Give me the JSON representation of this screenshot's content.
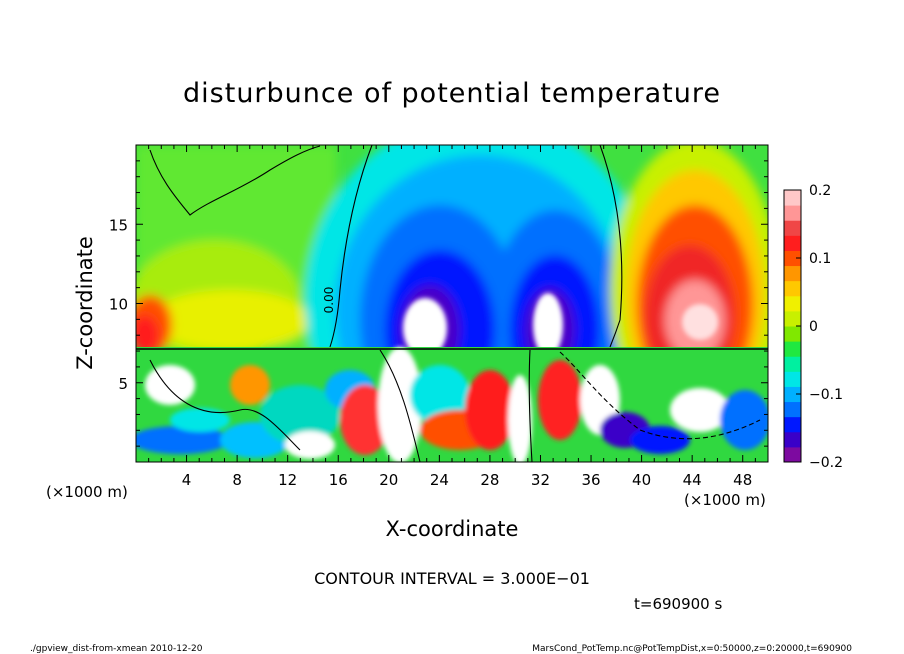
{
  "chart_data": {
    "type": "heatmap",
    "title": "disturbunce of potential temperature",
    "xlabel": "X-coordinate",
    "ylabel": "Z-coordinate",
    "x_unit_left": "(×1000 m)",
    "x_unit_right": "(×1000 m)",
    "xlim": [
      0,
      50
    ],
    "ylim": [
      0,
      20
    ],
    "x_ticks": [
      4,
      8,
      12,
      16,
      20,
      24,
      28,
      32,
      36,
      40,
      44,
      48
    ],
    "y_ticks": [
      5,
      10,
      15
    ],
    "colorbar": {
      "min": -0.2,
      "max": 0.2,
      "ticks": [
        {
          "value": 0.2,
          "label": "0.2"
        },
        {
          "value": 0.1,
          "label": "0.1"
        },
        {
          "value": 0.0,
          "label": "0"
        },
        {
          "value": -0.1,
          "label": "−0.1"
        },
        {
          "value": -0.2,
          "label": "−0.2"
        }
      ],
      "colors": [
        "#7d0aa0",
        "#3a00c8",
        "#0018ff",
        "#0070ff",
        "#00b0ff",
        "#00e6e6",
        "#00f0a0",
        "#20e840",
        "#80e800",
        "#c8f000",
        "#f0f000",
        "#ffc800",
        "#ff9600",
        "#ff5000",
        "#ff1e1e",
        "#f04646",
        "#ff9696",
        "#ffc8c8"
      ]
    },
    "contour_label": "0.00",
    "contour_interval_text": "CONTOUR INTERVAL = 3.000E−01",
    "time_text": "t=690900 s"
  },
  "footer": {
    "left": "./gpview_dist-from-xmean  2010-12-20",
    "right": "MarsCond_PotTemp.nc@PotTempDist,x=0:50000,z=0:20000,t=690900"
  }
}
